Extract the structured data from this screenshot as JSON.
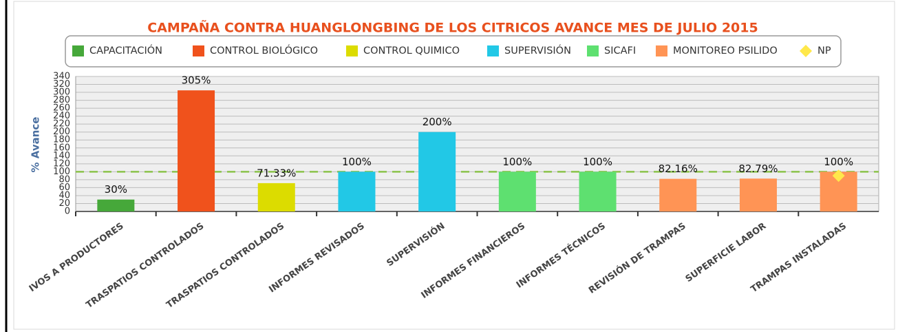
{
  "chart_data": {
    "type": "bar",
    "title": "CAMPAÑA CONTRA HUANGLONGBING DE LOS CITRICOS AVANCE MES DE JULIO 2015",
    "y_label": "% Avance",
    "categories": [
      "IVOS A PRODUCTORES",
      "TRASPATIOS CONTROLADOS",
      "TRASPATIOS CONTROLADOS",
      "INFORMES REVISADOS",
      "SUPERVISIÓN",
      "INFORMES FINANCIEROS",
      "INFORMES TÉCNICOS",
      "REVISIÓN DE TRAMPAS",
      "SUPERFICIE LABOR",
      "TRAMPAS INSTALADAS"
    ],
    "series": [
      {
        "name": "CAPACITACIÓN",
        "color": "#46a83a",
        "values": [
          30,
          null,
          null,
          null,
          null,
          null,
          null,
          null,
          null,
          null
        ],
        "value_labels": [
          "30%",
          null,
          null,
          null,
          null,
          null,
          null,
          null,
          null,
          null
        ]
      },
      {
        "name": "CONTROL BIOLÓGICO",
        "color": "#f0521c",
        "values": [
          null,
          305,
          null,
          null,
          null,
          null,
          null,
          null,
          null,
          null
        ],
        "value_labels": [
          null,
          "305%",
          null,
          null,
          null,
          null,
          null,
          null,
          null,
          null
        ]
      },
      {
        "name": "CONTROL QUIMICO",
        "color": "#dcdc00",
        "values": [
          null,
          null,
          71.33,
          null,
          null,
          null,
          null,
          null,
          null,
          null
        ],
        "value_labels": [
          null,
          null,
          "71.33%",
          null,
          null,
          null,
          null,
          null,
          null,
          null
        ]
      },
      {
        "name": "SUPERVISIÓN",
        "color": "#22c8e6",
        "values": [
          null,
          null,
          null,
          100,
          200,
          null,
          null,
          null,
          null,
          null
        ],
        "value_labels": [
          null,
          null,
          null,
          "100%",
          "200%",
          null,
          null,
          null,
          null,
          null
        ]
      },
      {
        "name": "SICAFI",
        "color": "#5ee070",
        "values": [
          null,
          null,
          null,
          null,
          null,
          100,
          100,
          null,
          null,
          null
        ],
        "value_labels": [
          null,
          null,
          null,
          null,
          null,
          "100%",
          "100%",
          null,
          null,
          null
        ]
      },
      {
        "name": "MONITOREO PSILIDO",
        "color": "#ff9455",
        "values": [
          null,
          null,
          null,
          null,
          null,
          null,
          null,
          82.16,
          82.79,
          100
        ],
        "value_labels": [
          null,
          null,
          null,
          null,
          null,
          null,
          null,
          "82.16%",
          "82.79%",
          "100%"
        ]
      },
      {
        "name": "NP",
        "color": "#ffe84a",
        "marker": "diamond",
        "values": [
          null,
          null,
          null,
          null,
          null,
          null,
          null,
          null,
          null,
          90
        ]
      }
    ],
    "reference_line": {
      "value": 100,
      "color": "#8bc34a"
    },
    "ylim": [
      0,
      340
    ],
    "yticks": [
      0,
      20,
      40,
      60,
      80,
      100,
      120,
      140,
      160,
      180,
      200,
      220,
      240,
      260,
      280,
      300,
      320,
      340
    ],
    "grid": true
  }
}
